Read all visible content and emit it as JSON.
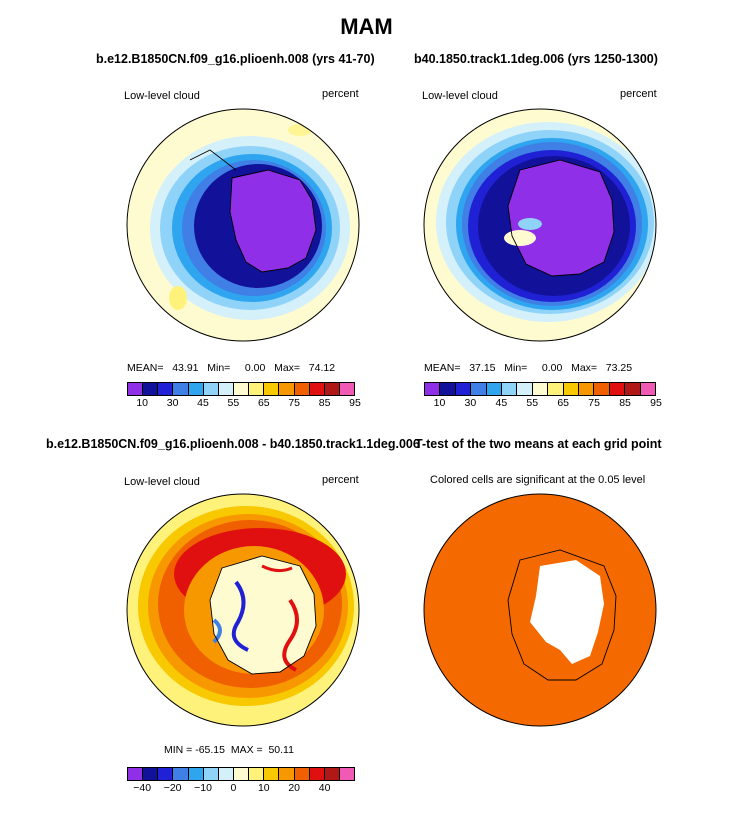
{
  "title": "MAM",
  "panels": [
    {
      "title": "b.e12.B1850CN.f09_g16.plioenh.008 (yrs 41-70)",
      "left_label": "Low-level cloud",
      "right_label": "percent",
      "stats": "MEAN=   43.91   Min=     0.00   Max=   74.12"
    },
    {
      "title": "b40.1850.track1.1deg.006 (yrs 1250-1300)",
      "left_label": "Low-level cloud",
      "right_label": "percent",
      "stats": "MEAN=   37.15   Min=     0.00   Max=   73.25"
    },
    {
      "title": "b.e12.B1850CN.f09_g16.plioenh.008 - b40.1850.track1.1deg.006",
      "left_label": "Low-level cloud",
      "right_label": "percent",
      "stats": "MIN = -65.15  MAX =  50.11"
    },
    {
      "title": "T-test of the two means at each grid point",
      "left_label": "Colored cells are significant at the 0.05 level",
      "right_label": "",
      "stats": ""
    }
  ],
  "colorbar_abs": {
    "colors": [
      "#8f2fe8",
      "#11119a",
      "#2020d4",
      "#3f7fe6",
      "#2fa5f0",
      "#8fd3f8",
      "#d4f0fa",
      "#fffbd0",
      "#fff27a",
      "#f8c800",
      "#f89800",
      "#f06000",
      "#e01010",
      "#b01818",
      "#f05ab4"
    ],
    "labels": [
      "10",
      "30",
      "45",
      "55",
      "65",
      "75",
      "85",
      "95"
    ]
  },
  "colorbar_diff": {
    "colors": [
      "#8f2fe8",
      "#11119a",
      "#2020d4",
      "#3f7fe6",
      "#2fa5f0",
      "#8fd3f8",
      "#d4f0fa",
      "#fffbd0",
      "#fff27a",
      "#f8c800",
      "#f89800",
      "#f06000",
      "#e01010",
      "#b01818",
      "#f05ab4"
    ],
    "labels": [
      "−40",
      "−20",
      "−10",
      "0",
      "10",
      "20",
      "40"
    ]
  },
  "chart_data": [
    {
      "type": "heatmap",
      "title": "b.e12.B1850CN.f09_g16.plioenh.008 (yrs 41-70)",
      "variable": "Low-level cloud",
      "units": "percent",
      "mean": 43.91,
      "min": 0.0,
      "max": 74.12,
      "colorbar_levels": [
        10,
        30,
        45,
        55,
        65,
        75,
        85,
        95
      ],
      "projection": "south polar stereographic"
    },
    {
      "type": "heatmap",
      "title": "b40.1850.track1.1deg.006 (yrs 1250-1300)",
      "variable": "Low-level cloud",
      "units": "percent",
      "mean": 37.15,
      "min": 0.0,
      "max": 73.25,
      "colorbar_levels": [
        10,
        30,
        45,
        55,
        65,
        75,
        85,
        95
      ],
      "projection": "south polar stereographic"
    },
    {
      "type": "heatmap",
      "title": "b.e12.B1850CN.f09_g16.plioenh.008 - b40.1850.track1.1deg.006",
      "variable": "Low-level cloud",
      "units": "percent",
      "min": -65.15,
      "max": 50.11,
      "colorbar_levels": [
        -40,
        -20,
        -10,
        0,
        10,
        20,
        40
      ],
      "projection": "south polar stereographic"
    },
    {
      "type": "heatmap",
      "title": "T-test of the two means at each grid point",
      "note": "Colored cells are significant at the 0.05 level",
      "significance_level": 0.05,
      "projection": "south polar stereographic"
    }
  ]
}
